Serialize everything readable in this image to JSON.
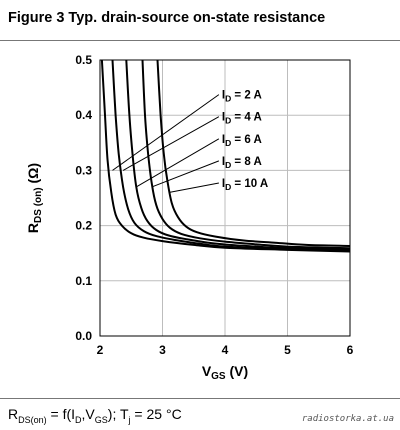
{
  "figure_title": "Figure 3 Typ. drain-source on-state resistance",
  "caption": {
    "r": "R",
    "r_sub": "DS(on)",
    "mid": " = f(I",
    "id_sub": "D",
    "comma": ",V",
    "gs_sub": "GS",
    "tail": "); T",
    "tj_sub": "j",
    "temp": " = 25 °C"
  },
  "watermark": "radiostorka.at.ua",
  "chart_data": {
    "type": "line",
    "xlabel": {
      "main": "V",
      "sub": "GS",
      "unit": " (V)"
    },
    "ylabel": {
      "main": "R",
      "sub": "DS (on)",
      "unit": " (Ω)"
    },
    "xlim": [
      2,
      6
    ],
    "ylim": [
      0,
      0.5
    ],
    "xticks": [
      "2",
      "3",
      "4",
      "5",
      "6"
    ],
    "yticks": [
      "0.0",
      "0.1",
      "0.2",
      "0.3",
      "0.4",
      "0.5"
    ],
    "grid": true,
    "series": [
      {
        "name": "I_D = 2 A",
        "label_main": "I",
        "label_sub": "D",
        "label_val": " = 2 A",
        "x": [
          2.03,
          2.08,
          2.12,
          2.18,
          2.25,
          2.35,
          2.5,
          2.7,
          3.0,
          3.5,
          4.0,
          5.0,
          6.0
        ],
        "y": [
          0.5,
          0.4,
          0.32,
          0.26,
          0.22,
          0.2,
          0.186,
          0.178,
          0.172,
          0.165,
          0.16,
          0.156,
          0.153
        ]
      },
      {
        "name": "I_D = 4 A",
        "label_main": "I",
        "label_sub": "D",
        "label_val": " = 4 A",
        "x": [
          2.2,
          2.25,
          2.3,
          2.37,
          2.45,
          2.55,
          2.7,
          2.9,
          3.2,
          3.6,
          4.0,
          5.0,
          6.0
        ],
        "y": [
          0.5,
          0.4,
          0.33,
          0.27,
          0.23,
          0.205,
          0.19,
          0.181,
          0.174,
          0.167,
          0.162,
          0.157,
          0.155
        ]
      },
      {
        "name": "I_D = 6 A",
        "label_main": "I",
        "label_sub": "D",
        "label_val": " = 6 A",
        "x": [
          2.42,
          2.47,
          2.52,
          2.58,
          2.66,
          2.76,
          2.9,
          3.1,
          3.4,
          3.8,
          4.2,
          5.0,
          6.0
        ],
        "y": [
          0.5,
          0.4,
          0.33,
          0.27,
          0.232,
          0.208,
          0.192,
          0.182,
          0.175,
          0.168,
          0.164,
          0.159,
          0.157
        ]
      },
      {
        "name": "I_D = 8 A",
        "label_main": "I",
        "label_sub": "D",
        "label_val": " = 8 A",
        "x": [
          2.68,
          2.72,
          2.77,
          2.83,
          2.9,
          3.0,
          3.12,
          3.3,
          3.6,
          4.0,
          4.5,
          5.0,
          6.0
        ],
        "y": [
          0.5,
          0.4,
          0.33,
          0.275,
          0.237,
          0.212,
          0.196,
          0.185,
          0.177,
          0.171,
          0.166,
          0.162,
          0.159
        ]
      },
      {
        "name": "I_D = 10 A",
        "label_main": "I",
        "label_sub": "D",
        "label_val": " = 10 A",
        "x": [
          2.92,
          2.97,
          3.02,
          3.08,
          3.15,
          3.25,
          3.38,
          3.55,
          3.85,
          4.3,
          4.8,
          5.3,
          6.0
        ],
        "y": [
          0.5,
          0.4,
          0.33,
          0.28,
          0.24,
          0.215,
          0.198,
          0.188,
          0.18,
          0.173,
          0.169,
          0.165,
          0.163
        ]
      }
    ],
    "callouts": [
      {
        "label_xy": [
          3.95,
          0.43
        ],
        "curve_xy": [
          2.2,
          0.3
        ]
      },
      {
        "label_xy": [
          3.95,
          0.39
        ],
        "curve_xy": [
          2.37,
          0.3
        ]
      },
      {
        "label_xy": [
          3.95,
          0.35
        ],
        "curve_xy": [
          2.58,
          0.27
        ]
      },
      {
        "label_xy": [
          3.95,
          0.31
        ],
        "curve_xy": [
          2.83,
          0.27
        ]
      },
      {
        "label_xy": [
          3.95,
          0.27
        ],
        "curve_xy": [
          3.1,
          0.26
        ]
      }
    ]
  }
}
